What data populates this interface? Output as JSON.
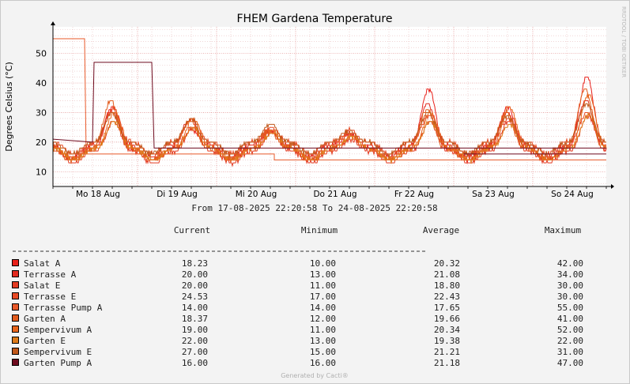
{
  "chart_data": {
    "type": "line",
    "title": "FHEM Gardena Temperature",
    "ylabel": "Degrees Celsius (°C)",
    "watermark": "RRDTOOL / TOBI OETIKER",
    "footer": "Generated by Cacti®",
    "ylim": [
      5,
      59
    ],
    "yticks": [
      10,
      20,
      30,
      40,
      50
    ],
    "x_categories": [
      "Mo 18 Aug",
      "Di 19 Aug",
      "Mi 20 Aug",
      "Do 21 Aug",
      "Fr 22 Aug",
      "Sa 23 Aug",
      "So 24 Aug"
    ],
    "grid": true,
    "time_range": "From 17-08-2025 22:20:58 To 24-08-2025 22:20:58",
    "legend_headers": {
      "current": "Current",
      "minimum": "Minimum",
      "average": "Average",
      "maximum": "Maximum"
    },
    "series": [
      {
        "name": "Salat A",
        "color": "#e8211b",
        "current": "18.23",
        "minimum": "10.00",
        "average": "20.32",
        "maximum": "42.00"
      },
      {
        "name": "Terrasse A",
        "color": "#e22a1f",
        "current": "20.00",
        "minimum": "13.00",
        "average": "21.08",
        "maximum": "34.00"
      },
      {
        "name": "Salat E",
        "color": "#e33b22",
        "current": "20.00",
        "minimum": "11.00",
        "average": "18.80",
        "maximum": "30.00"
      },
      {
        "name": "Terrasse E",
        "color": "#e84a25",
        "current": "24.53",
        "minimum": "17.00",
        "average": "22.43",
        "maximum": "30.00"
      },
      {
        "name": "Terrasse Pump A",
        "color": "#e8592a",
        "current": "14.00",
        "minimum": "14.00",
        "average": "17.65",
        "maximum": "55.00"
      },
      {
        "name": "Garten A",
        "color": "#e25c1e",
        "current": "18.37",
        "minimum": "12.00",
        "average": "19.66",
        "maximum": "41.00"
      },
      {
        "name": "Sempervivum A",
        "color": "#e8651c",
        "current": "19.00",
        "minimum": "11.00",
        "average": "20.34",
        "maximum": "52.00"
      },
      {
        "name": "Garten E",
        "color": "#dd7a1a",
        "current": "22.00",
        "minimum": "13.00",
        "average": "19.38",
        "maximum": "22.00"
      },
      {
        "name": "Sempervivum E",
        "color": "#c0581a",
        "current": "27.00",
        "minimum": "15.00",
        "average": "21.21",
        "maximum": "31.00"
      },
      {
        "name": "Garten Pump A",
        "color": "#6e0a1e",
        "current": "16.00",
        "minimum": "16.00",
        "average": "21.18",
        "maximum": "47.00"
      }
    ]
  }
}
